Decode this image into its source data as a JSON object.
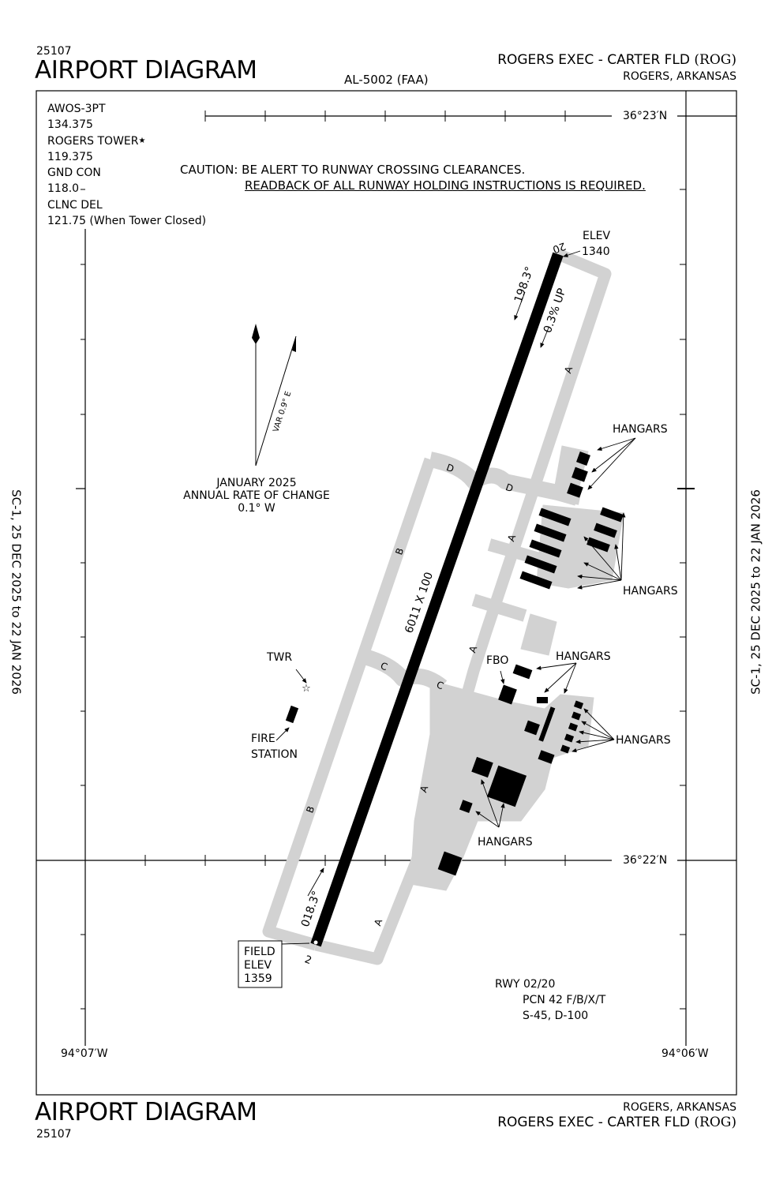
{
  "header": {
    "chart_number": "25107",
    "title": "AIRPORT DIAGRAM",
    "procedure_id": "AL-5002 (FAA)",
    "airport_name": "ROGERS EXEC - CARTER FLD",
    "airport_id": "(ROG)",
    "city_state": "ROGERS, ARKANSAS"
  },
  "footer": {
    "chart_number": "25107",
    "title": "AIRPORT DIAGRAM",
    "airport_name": "ROGERS EXEC - CARTER FLD",
    "airport_id": "(ROG)",
    "city_state": "ROGERS, ARKANSAS"
  },
  "side_dates": {
    "left": "SC-1,  25 DEC 2025  to  22 JAN 2026",
    "right": "SC-1,  25 DEC 2025  to  22 JAN 2026"
  },
  "frequencies": [
    "AWOS-3PT",
    "134.375",
    "ROGERS TOWER",
    "119.375",
    "GND CON",
    "118.0",
    "CLNC DEL",
    "121.75 (When Tower Closed)"
  ],
  "tower_star": "★",
  "caution": {
    "line1": "CAUTION: BE ALERT TO RUNWAY CROSSING CLEARANCES.",
    "line2": "READBACK OF ALL RUNWAY HOLDING INSTRUCTIONS IS REQUIRED."
  },
  "grid": {
    "lat_north": "36°23′N",
    "lat_south": "36°22′N",
    "lon_west": "94°07′W",
    "lon_east": "94°06′W"
  },
  "magnetic": {
    "variation": "VAR 0.9° E",
    "date": "JANUARY 2025",
    "rate_label": "ANNUAL RATE OF CHANGE",
    "rate": "0.1° W"
  },
  "runway": {
    "dimensions": "6011 X 100",
    "end_north": "20",
    "end_south": "2",
    "heading_north": "198.3°",
    "heading_south": "018.3°",
    "gradient": "0.3% UP",
    "elev_label": "ELEV",
    "elev_north": "1340",
    "field_elev_label": "FIELD\nELEV",
    "field_elev_line1": "FIELD",
    "field_elev_line2": "ELEV",
    "field_elev": "1359"
  },
  "taxiways": {
    "a": "A",
    "b": "B",
    "c": "C",
    "d": "D"
  },
  "labels": {
    "hangars": "HANGARS",
    "fbo": "FBO",
    "twr": "TWR",
    "fire1": "FIRE",
    "fire2": "STATION"
  },
  "runway_info": {
    "rwy": "RWY 02/20",
    "pcn": "PCN 42 F/B/X/T",
    "strength": "S-45, D-100"
  },
  "colors": {
    "pavement": "#d2d2d2",
    "runway": "#000000",
    "ink": "#000000"
  }
}
